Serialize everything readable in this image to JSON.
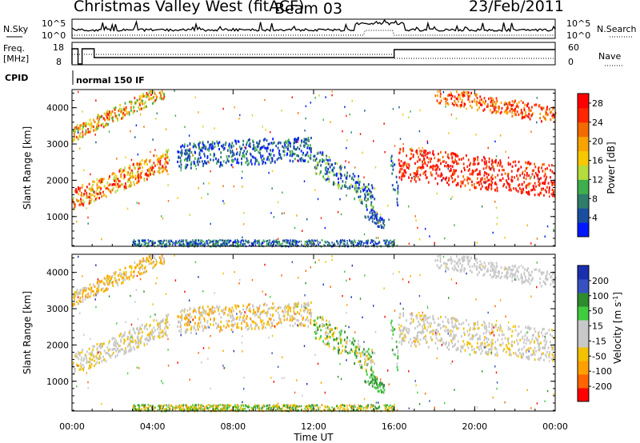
{
  "header": {
    "station": "Christmas Valley West (fitACF)",
    "beam": "Beam 03",
    "date": "23/Feb/2011"
  },
  "top_panels": {
    "nsky_label": "N.Sky",
    "nsky_ticks": [
      "10^5",
      "10^0"
    ],
    "nsearch_label": "N.Search",
    "freq_label_1": "Freq.",
    "freq_label_2": "[MHz]",
    "freq_ticks": [
      "18",
      "8"
    ],
    "nave_label": "Nave",
    "nave_ticks": [
      "60",
      "0"
    ],
    "cpid_label": "CPID",
    "cpid_text": "normal 150 IF"
  },
  "colors": {
    "power": [
      "#0018ff",
      "#1a4fa0",
      "#2f7d6a",
      "#3fae4c",
      "#b5dc3c",
      "#f6c800",
      "#f7a400",
      "#f26a00",
      "#ff2600",
      "#ff0000"
    ],
    "velocity": [
      "#ff0000",
      "#ff6400",
      "#ffa000",
      "#f2c200",
      "#c8c8c8",
      "#c8c8c8",
      "#3fcc3f",
      "#2e8b2e",
      "#3552c0",
      "#1a2fb0"
    ]
  },
  "chart_data": [
    {
      "type": "heatmap",
      "name": "Power",
      "xlabel": "",
      "ylabel": "Slant Range [km]",
      "x_range_hours": [
        0,
        24
      ],
      "y_range_km": [
        180,
        4500
      ],
      "y_ticks": [
        1000,
        2000,
        3000,
        4000
      ],
      "colorbar_label": "Power [dB]",
      "colorbar_ticks": [
        4,
        8,
        12,
        16,
        20,
        24,
        28
      ],
      "colorbar_range": [
        0,
        30
      ]
    },
    {
      "type": "heatmap",
      "name": "Velocity",
      "xlabel": "Time UT",
      "ylabel": "Slant Range [km]",
      "x_ticks": [
        "00:00",
        "04:00",
        "08:00",
        "12:00",
        "16:00",
        "20:00",
        "00:00"
      ],
      "y_range_km": [
        180,
        4500
      ],
      "y_ticks": [
        1000,
        2000,
        3000,
        4000
      ],
      "colorbar_label": "Velocity [m s-1]",
      "colorbar_ticks": [
        200,
        100,
        50,
        15,
        -15,
        -50,
        -100,
        -200
      ]
    }
  ]
}
